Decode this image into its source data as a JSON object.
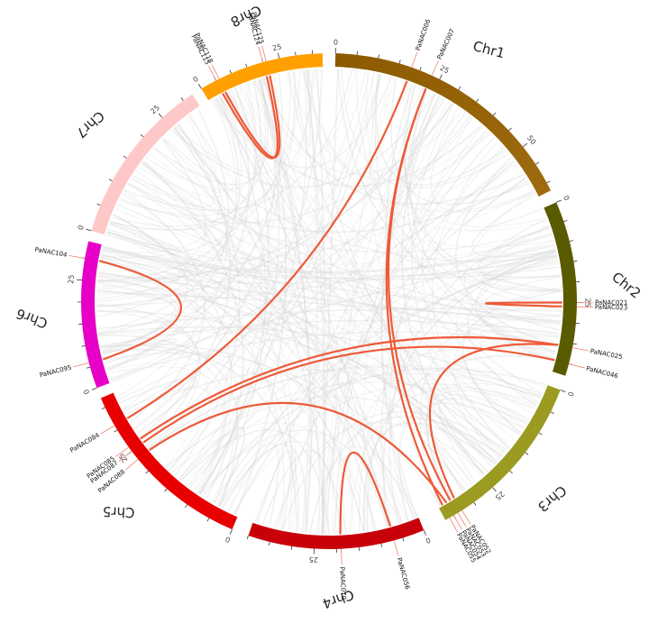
{
  "chromosomes": [
    {
      "name": "Chr1",
      "color": "#8B5A00",
      "color_end": "#A06B10",
      "length": 62
    },
    {
      "name": "Chr2",
      "color": "#5A5A00",
      "length": 43
    },
    {
      "name": "Chr3",
      "color": "#9B9B22",
      "length": 37
    },
    {
      "name": "Chr4",
      "color": "#C8000A",
      "length": 40
    },
    {
      "name": "Chr5",
      "color": "#E80000",
      "length": 37
    },
    {
      "name": "Chr6",
      "color": "#E600C8",
      "length": 34
    },
    {
      "name": "Chr7",
      "color": "#FFC8C8",
      "length": 32
    },
    {
      "name": "Chr8",
      "color": "#FFA000",
      "length": 38
    }
  ],
  "genes": [
    {
      "id": "PaNAC006",
      "chr": 0,
      "pos": 18
    },
    {
      "id": "PaNAC007",
      "chr": 0,
      "pos": 23
    },
    {
      "id": "PaNAC021",
      "chr": 1,
      "pos": 25
    },
    {
      "id": "PaNAC023",
      "chr": 1,
      "pos": 26
    },
    {
      "id": "PaNAC025",
      "chr": 1,
      "pos": 36
    },
    {
      "id": "PaNAC046",
      "chr": 1,
      "pos": 40
    },
    {
      "id": "PaNAC052",
      "chr": 2,
      "pos": 33
    },
    {
      "id": "PaNAC053",
      "chr": 2,
      "pos": 34
    },
    {
      "id": "PaNAC054",
      "chr": 2,
      "pos": 35
    },
    {
      "id": "PaNAC055",
      "chr": 2,
      "pos": 36
    },
    {
      "id": "PaNAC056",
      "chr": 3,
      "pos": 7
    },
    {
      "id": "PaNAC070",
      "chr": 3,
      "pos": 19
    },
    {
      "id": "PaNAC084",
      "chr": 4,
      "pos": 31
    },
    {
      "id": "PaNAC085",
      "chr": 4,
      "pos": 26
    },
    {
      "id": "PaNAC087",
      "chr": 4,
      "pos": 25
    },
    {
      "id": "PaNAC088",
      "chr": 4,
      "pos": 23
    },
    {
      "id": "PaNAC095",
      "chr": 5,
      "pos": 6
    },
    {
      "id": "PaNAC104",
      "chr": 5,
      "pos": 30
    },
    {
      "id": "PaNAC115",
      "chr": 7,
      "pos": 5
    },
    {
      "id": "PaNAC118",
      "chr": 7,
      "pos": 6
    },
    {
      "id": "PaNAC124",
      "chr": 7,
      "pos": 20
    },
    {
      "id": "PaNAC125",
      "chr": 7,
      "pos": 21
    }
  ],
  "duplication_links": [
    [
      "PaNAC006",
      "PaNAC084"
    ],
    [
      "PaNAC007",
      "PaNAC053"
    ],
    [
      "PaNAC007",
      "PaNAC055"
    ],
    [
      "PaNAC021",
      "PaNAC023"
    ],
    [
      "PaNAC025",
      "PaNAC085"
    ],
    [
      "PaNAC046",
      "PaNAC087"
    ],
    [
      "PaNAC025",
      "PaNAC052"
    ],
    [
      "PaNAC054",
      "PaNAC088"
    ],
    [
      "PaNAC056",
      "PaNAC070"
    ],
    [
      "PaNAC095",
      "PaNAC104"
    ],
    [
      "PaNAC115",
      "PaNAC124"
    ],
    [
      "PaNAC118",
      "PaNAC125"
    ]
  ],
  "colors": {
    "highlight_link": "#EE5A38",
    "background_link": "#D6D6D6",
    "gene_marker": "#F08070",
    "tick": "#333333"
  }
}
